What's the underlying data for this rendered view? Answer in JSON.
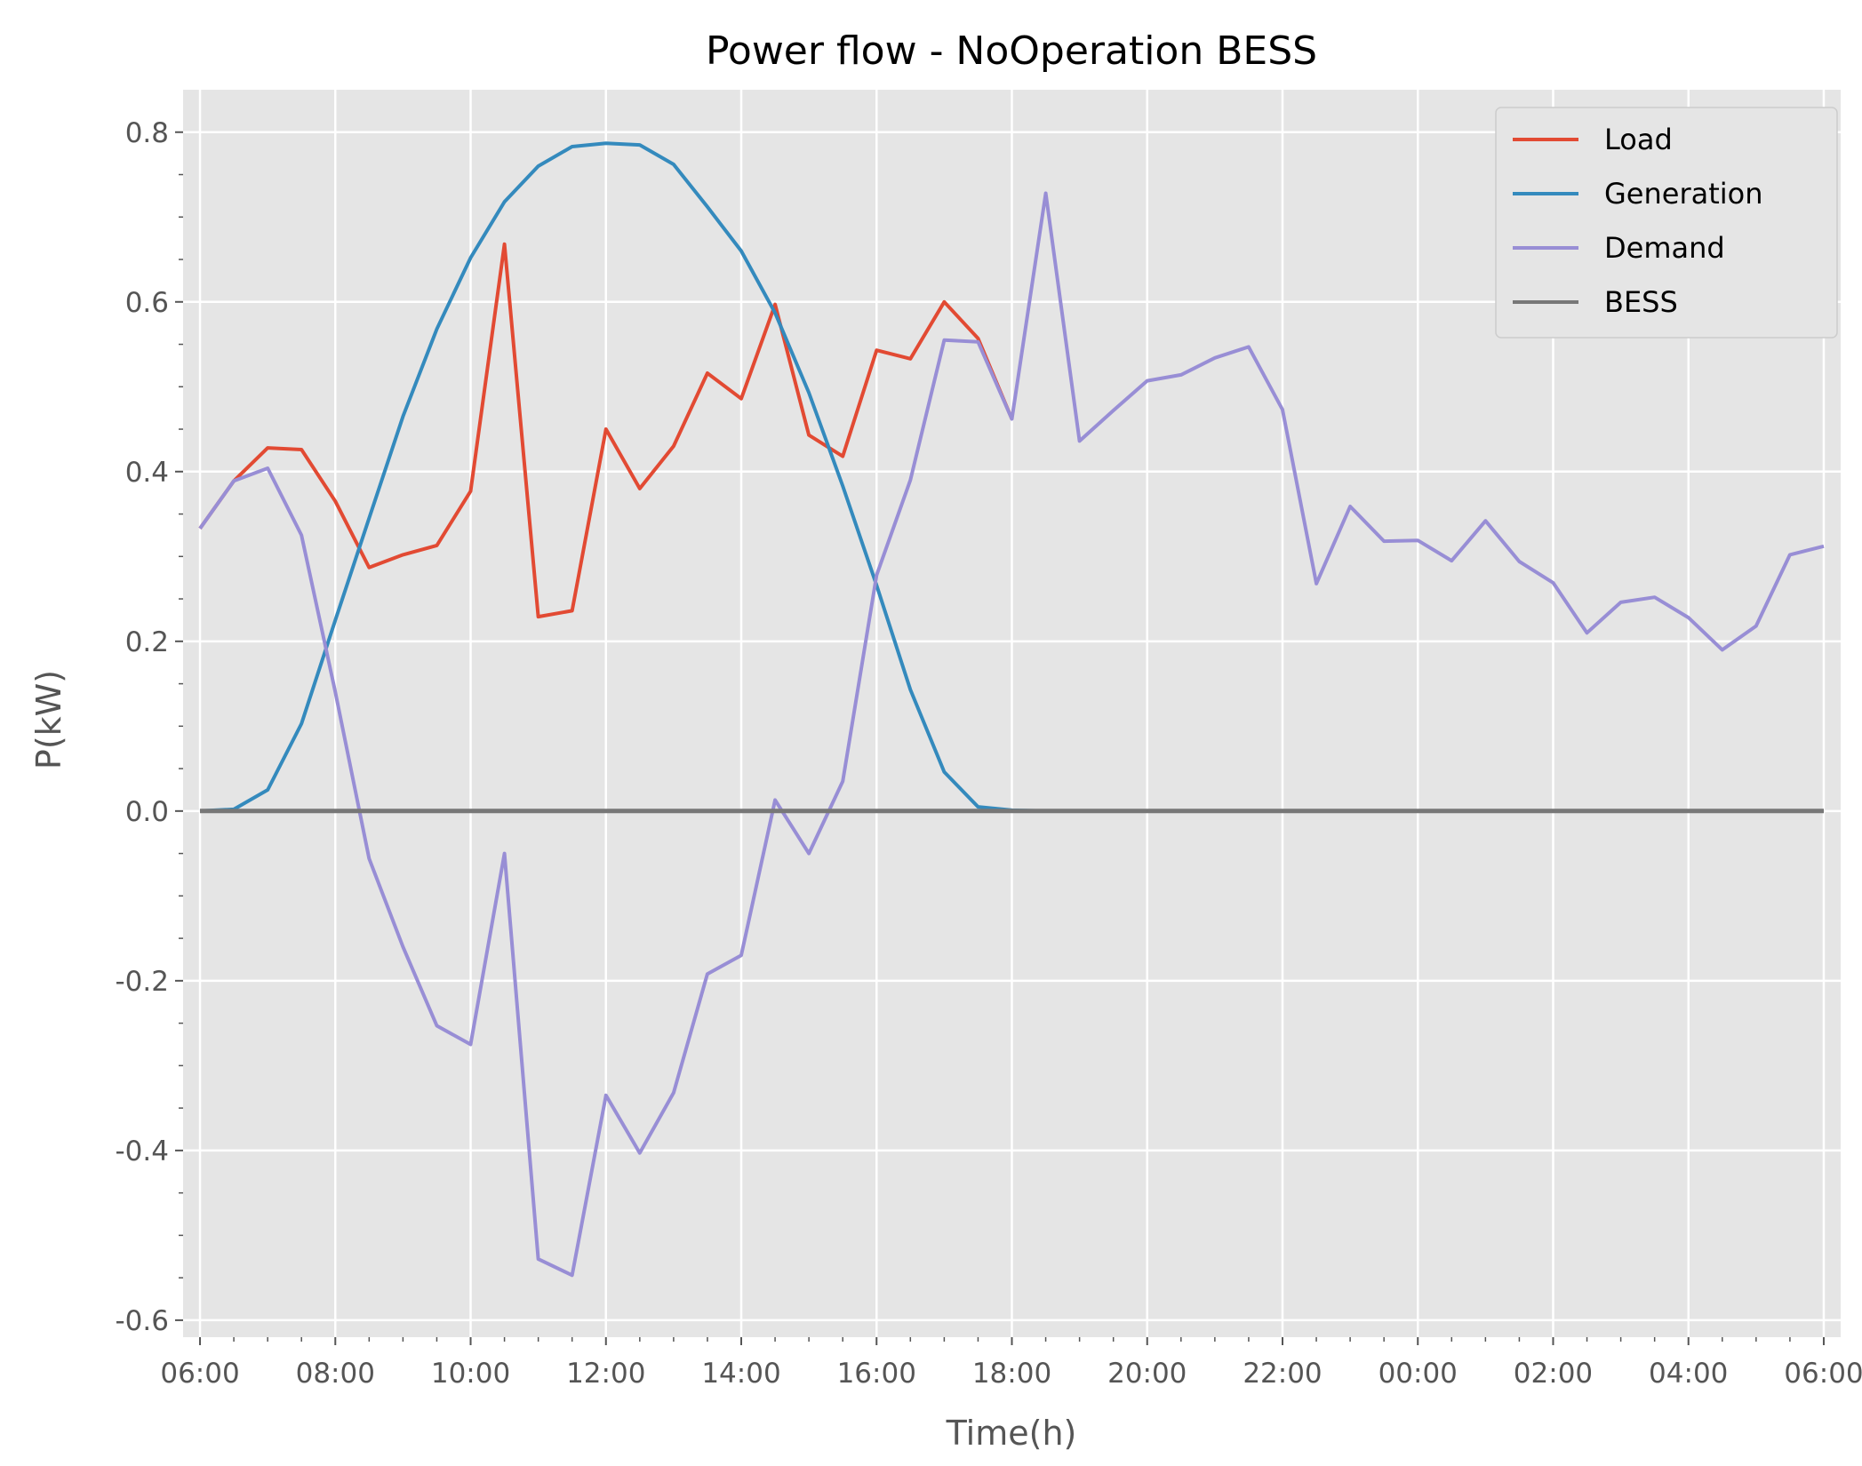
{
  "chart_data": {
    "type": "line",
    "title": "Power flow - NoOperation BESS",
    "xlabel": "Time(h)",
    "ylabel": "P(kW)",
    "ylim": [
      -0.62,
      0.85
    ],
    "xlim": [
      -0.5,
      48.5
    ],
    "x_tick_positions": [
      0,
      4,
      8,
      12,
      16,
      20,
      24,
      28,
      32,
      36,
      40,
      44,
      48
    ],
    "x_tick_labels": [
      "06:00",
      "08:00",
      "10:00",
      "12:00",
      "14:00",
      "16:00",
      "18:00",
      "20:00",
      "22:00",
      "00:00",
      "02:00",
      "04:00",
      "06:00"
    ],
    "y_ticks": [
      -0.6,
      -0.4,
      -0.2,
      0.0,
      0.2,
      0.4,
      0.6,
      0.8
    ],
    "y_tick_labels": [
      "-0.6",
      "-0.4",
      "-0.2",
      "0.0",
      "0.2",
      "0.4",
      "0.6",
      "0.8"
    ],
    "grid": true,
    "legend_position": "top-right",
    "series": [
      {
        "name": "Load",
        "color": "#E24A33",
        "x": [
          0,
          1,
          2,
          3,
          4,
          5,
          6,
          7,
          8,
          9,
          10,
          11,
          12,
          13,
          14,
          15,
          16,
          17,
          18,
          19,
          20,
          21,
          22,
          23,
          24
        ],
        "values": [
          0.333,
          0.389,
          0.428,
          0.426,
          0.365,
          0.287,
          0.302,
          0.313,
          0.377,
          0.668,
          0.229,
          0.236,
          0.45,
          0.38,
          0.43,
          0.516,
          0.486,
          0.597,
          0.443,
          0.418,
          0.543,
          0.533,
          0.6,
          0.557,
          0.462
        ]
      },
      {
        "name": "Generation",
        "color": "#348ABD",
        "x": [
          0,
          1,
          2,
          3,
          4,
          5,
          6,
          7,
          8,
          9,
          10,
          11,
          12,
          13,
          14,
          15,
          16,
          17,
          18,
          19,
          20,
          21,
          22,
          23,
          24,
          25,
          26,
          27,
          28,
          29,
          30,
          31,
          32,
          33,
          34,
          35,
          36,
          37,
          38,
          39,
          40,
          41,
          42,
          43,
          44,
          45,
          46,
          47,
          48
        ],
        "values": [
          0.0,
          0.002,
          0.025,
          0.103,
          0.225,
          0.345,
          0.465,
          0.568,
          0.652,
          0.718,
          0.76,
          0.783,
          0.787,
          0.785,
          0.762,
          0.712,
          0.66,
          0.587,
          0.493,
          0.383,
          0.266,
          0.143,
          0.046,
          0.005,
          0.001,
          0,
          0,
          0,
          0,
          0,
          0,
          0,
          0,
          0,
          0,
          0,
          0,
          0,
          0,
          0,
          0,
          0,
          0,
          0,
          0,
          0,
          0,
          0,
          0
        ]
      },
      {
        "name": "Demand",
        "color": "#988ED5",
        "x": [
          0,
          1,
          2,
          3,
          4,
          5,
          6,
          7,
          8,
          9,
          10,
          11,
          12,
          13,
          14,
          15,
          16,
          17,
          18,
          19,
          20,
          21,
          22,
          23,
          24,
          25,
          26,
          27,
          28,
          29,
          30,
          31,
          32,
          33,
          34,
          35,
          36,
          37,
          38,
          39,
          40,
          41,
          42,
          43,
          44,
          45,
          46,
          47,
          48
        ],
        "values": [
          0.333,
          0.389,
          0.404,
          0.325,
          0.14,
          -0.056,
          -0.16,
          -0.253,
          -0.275,
          -0.05,
          -0.528,
          -0.547,
          -0.335,
          -0.403,
          -0.332,
          -0.192,
          -0.17,
          0.013,
          -0.05,
          0.035,
          0.278,
          0.39,
          0.555,
          0.553,
          0.462,
          0.728,
          0.436,
          0.472,
          0.507,
          0.514,
          0.534,
          0.547,
          0.473,
          0.268,
          0.359,
          0.318,
          0.319,
          0.295,
          0.342,
          0.294,
          0.269,
          0.21,
          0.246,
          0.252,
          0.228,
          0.19,
          0.218,
          0.302,
          0.312
        ]
      },
      {
        "name": "BESS",
        "color": "#777777",
        "x": [
          0,
          48
        ],
        "values": [
          0.0,
          0.0
        ]
      }
    ]
  }
}
